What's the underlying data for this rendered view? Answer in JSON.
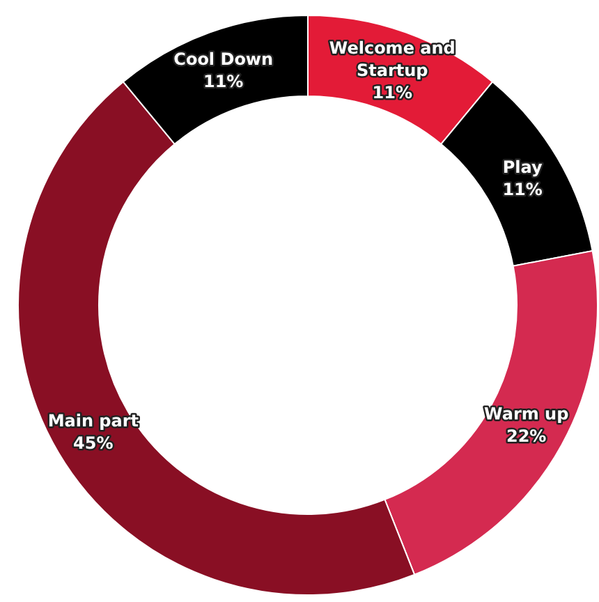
{
  "chart_data": {
    "type": "donut",
    "categories": [
      "Welcome and Startup",
      "Play",
      "Warm up",
      "Main part",
      "Cool Down"
    ],
    "values": [
      11,
      11,
      22,
      45,
      11
    ],
    "value_labels": [
      "11%",
      "11%",
      "22%",
      "45%",
      "11%"
    ],
    "colors": [
      "#e31b37",
      "#000000",
      "#d42a50",
      "#890f24",
      "#000000"
    ],
    "legend": false
  }
}
